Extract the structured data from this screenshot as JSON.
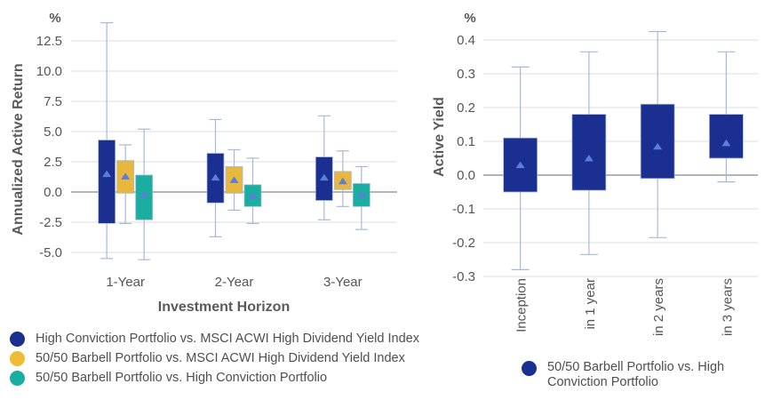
{
  "chart_data": [
    {
      "type": "box",
      "title": "",
      "unit_label": "%",
      "xlabel": "Investment Horizon",
      "ylabel": "Annualized Active Return",
      "ylim": [
        -5.8,
        14.0
      ],
      "yticks": [
        -5.0,
        -2.5,
        0.0,
        2.5,
        5.0,
        7.5,
        10.0,
        12.5
      ],
      "ytick_labels": [
        "-5.0",
        "-2.5",
        "0.0",
        "2.5",
        "5.0",
        "7.5",
        "10.0",
        "12.5"
      ],
      "grid": true,
      "categories": [
        "1-Year",
        "2-Year",
        "3-Year"
      ],
      "legend_position": "bottom",
      "series": [
        {
          "name": "High Conviction Portfolio vs. MSCI ACWI High Dividend Yield Index",
          "color": "#1a2f8f",
          "boxes": [
            {
              "min": -5.5,
              "q1": -2.6,
              "q3": 4.3,
              "max": 14.0,
              "mean": 1.5
            },
            {
              "min": -3.7,
              "q1": -0.9,
              "q3": 3.2,
              "max": 6.0,
              "mean": 1.2
            },
            {
              "min": -2.3,
              "q1": -0.7,
              "q3": 2.9,
              "max": 6.3,
              "mean": 1.2
            }
          ]
        },
        {
          "name": "50/50 Barbell Portfolio vs. MSCI ACWI High Dividend Yield Index",
          "color": "#e8b83e",
          "boxes": [
            {
              "min": -2.6,
              "q1": -0.1,
              "q3": 2.6,
              "max": 3.9,
              "mean": 1.3
            },
            {
              "min": -1.5,
              "q1": -0.1,
              "q3": 2.1,
              "max": 3.5,
              "mean": 1.0
            },
            {
              "min": -1.2,
              "q1": 0.2,
              "q3": 1.7,
              "max": 3.4,
              "mean": 0.9
            }
          ]
        },
        {
          "name": "50/50 Barbell Portfolio vs. High Conviction Portfolio",
          "color": "#1aaea0",
          "boxes": [
            {
              "min": -5.6,
              "q1": -2.3,
              "q3": 1.4,
              "max": 5.2,
              "mean": -0.2
            },
            {
              "min": -2.6,
              "q1": -1.2,
              "q3": 0.6,
              "max": 2.8,
              "mean": -0.3
            },
            {
              "min": -3.1,
              "q1": -1.2,
              "q3": 0.7,
              "max": 2.1,
              "mean": -0.2
            }
          ]
        }
      ]
    },
    {
      "type": "box",
      "title": "",
      "unit_label": "%",
      "xlabel": "",
      "ylabel": "Active Yield",
      "ylim": [
        -0.3,
        0.43
      ],
      "yticks": [
        -0.3,
        -0.2,
        -0.1,
        0.0,
        0.1,
        0.2,
        0.3,
        0.4
      ],
      "ytick_labels": [
        "-0.3",
        "-0.2",
        "-0.1",
        "0.0",
        "0.1",
        "0.2",
        "0.3",
        "0.4"
      ],
      "grid": true,
      "categories": [
        "Inception",
        "in 1 year",
        "in 2 years",
        "in 3 years"
      ],
      "legend_position": "bottom",
      "series": [
        {
          "name": "50/50 Barbell Portfolio vs. High Conviction Portfolio",
          "color": "#1a2f8f",
          "boxes": [
            {
              "min": -0.28,
              "q1": -0.05,
              "q3": 0.11,
              "max": 0.32,
              "mean": 0.03
            },
            {
              "min": -0.235,
              "q1": -0.045,
              "q3": 0.18,
              "max": 0.365,
              "mean": 0.05
            },
            {
              "min": -0.185,
              "q1": -0.01,
              "q3": 0.21,
              "max": 0.425,
              "mean": 0.085
            },
            {
              "min": -0.02,
              "q1": 0.05,
              "q3": 0.18,
              "max": 0.365,
              "mean": 0.095
            }
          ]
        }
      ]
    }
  ],
  "legend_left": [
    {
      "label": "High Conviction Portfolio vs. MSCI ACWI High Dividend Yield Index",
      "color": "#1a2f8f"
    },
    {
      "label": "50/50 Barbell Portfolio vs. MSCI ACWI High Dividend Yield Index",
      "color": "#f0bc35"
    },
    {
      "label": "50/50 Barbell Portfolio vs. High Conviction Portfolio",
      "color": "#1aaea0"
    }
  ],
  "legend_right": [
    {
      "label": "50/50 Barbell Portfolio vs. High Conviction Portfolio",
      "color": "#1a2f8f"
    }
  ],
  "colors": {
    "grid": "#dddddd",
    "zero_line": "#888888",
    "whisker": "#a9b8d8",
    "mean_marker": "#5b7fd8"
  }
}
